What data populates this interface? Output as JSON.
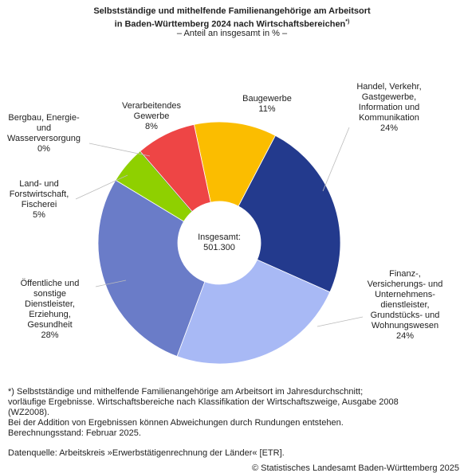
{
  "chart_data": {
    "type": "donut",
    "title": "Selbstständige und mithelfende Familienangehörige am Arbeitsort\nin Baden-Württemberg 2024 nach Wirtschaftsbereichen",
    "title_note": "*)",
    "subtitle": "– Anteil an insgesamt in % –",
    "categories": [
      "Baugewerbe",
      "Handel, Verkehr,\nGastgewerbe,\nInformation und\nKommunikation",
      "Finanz-,\nVersicherungs- und\nUnternehmens-\ndienstleister,\nGrundstücks- und\nWohnungswesen",
      "Öffentliche und\nsonstige\nDienstleister,\nErziehung,\nGesundheit",
      "Land- und\nForstwirtschaft,\nFischerei",
      "Bergbau, Energie-\nund\nWasserversorgung",
      "Verarbeitendes\nGewerbe"
    ],
    "values": [
      11,
      24,
      24,
      28,
      5,
      0,
      8
    ],
    "value_labels": [
      "11%",
      "24%",
      "24%",
      "28%",
      "5%",
      "0%",
      "8%"
    ],
    "colors": [
      "#fbbd00",
      "#233a8d",
      "#a8b9f5",
      "#6a7cc8",
      "#8fd000",
      "#2f7d3a",
      "#ee4545"
    ],
    "center_text": [
      "Insgesamt:",
      "501.300"
    ],
    "footnote": "*) Selbstständige und mithelfende Familienangehörige am Arbeitsort im Jahresdurchschnitt;\nvorläufige Ergebnisse. Wirtschaftsbereiche nach Klassifikation der Wirtschaftszweige, Ausgabe 2008\n(WZ2008).\nBei der Addition von Ergebnissen können Abweichungen durch Rundungen entstehen.\nBerechnungsstand: Februar 2025.",
    "source": "Datenquelle: Arbeitskreis »Erwerbstätigenrechnung der Länder« [ETR].",
    "copyright": "© Statistisches Landesamt Baden-Württemberg 2025"
  }
}
